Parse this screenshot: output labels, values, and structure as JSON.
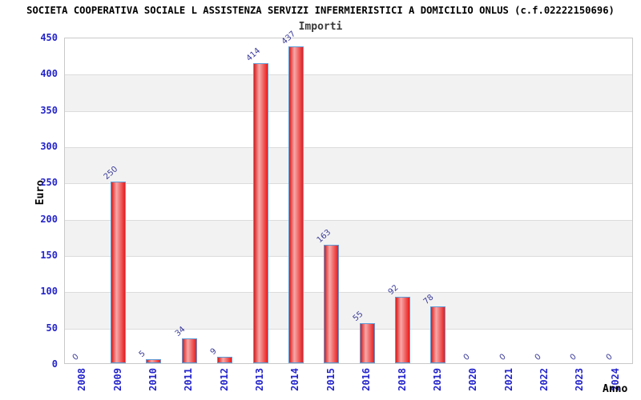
{
  "page": {
    "background": "#ffffff"
  },
  "chart_data": {
    "type": "bar",
    "title": "SOCIETA COOPERATIVA SOCIALE L ASSISTENZA SERVIZI INFERMIERISTICI A DOMICILIO ONLUS (c.f.02222150696)",
    "subtitle": "Importi",
    "xlabel": "Anno",
    "ylabel": "Euro",
    "categories": [
      "2008",
      "2009",
      "2010",
      "2011",
      "2012",
      "2013",
      "2014",
      "2015",
      "2016",
      "2018",
      "2019",
      "2020",
      "2021",
      "2022",
      "2023",
      "2024"
    ],
    "values": [
      0,
      250,
      5,
      34,
      9,
      414,
      437,
      163,
      55,
      92,
      78,
      0,
      0,
      0,
      0,
      0
    ],
    "ylim": [
      0,
      450
    ],
    "ytick_step": 50,
    "grid": true,
    "legend": "none",
    "band_pattern": "alternating horizontal white/grey bands every 50 units",
    "colors": {
      "axis_text": "#2424cc",
      "value_label": "#3a3a9a",
      "bar_border": "#5d9bd6",
      "bar_edge": "#d61c1c",
      "bar_highlight": "#f8a8a8",
      "bar_end": "#e81c1c",
      "band": "#f2f2f2",
      "gridline": "#dcdcdc",
      "plot_border": "#c9c9c9",
      "title_text": "#000000",
      "subtitle_text": "#3a3a3a"
    }
  }
}
